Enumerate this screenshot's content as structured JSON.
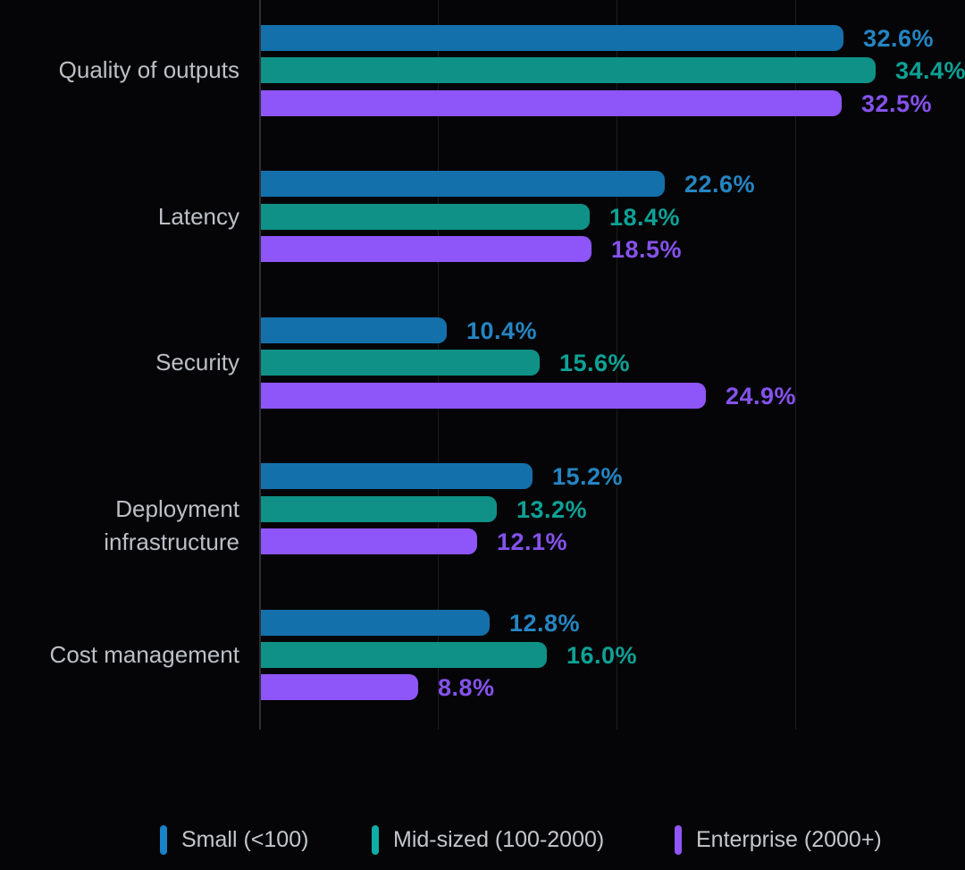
{
  "chart_data": {
    "type": "bar",
    "orientation": "horizontal",
    "title": "",
    "xlabel": "",
    "ylabel": "",
    "categories": [
      "Quality of outputs",
      "Latency",
      "Security",
      "Deployment infrastructure",
      "Cost management"
    ],
    "series": [
      {
        "name": "Small (<100)",
        "bar_color": "#1470ab",
        "label_color": "#2585c2",
        "marker_color": "#1a82c8",
        "values": [
          32.6,
          22.6,
          10.4,
          15.2,
          12.8
        ]
      },
      {
        "name": "Mid-sized (100-2000)",
        "bar_color": "#109187",
        "label_color": "#0ea196",
        "marker_color": "#10ada4",
        "values": [
          34.4,
          18.4,
          15.6,
          13.2,
          16.0
        ]
      },
      {
        "name": "Enterprise (2000+)",
        "bar_color": "#8e55f9",
        "label_color": "#8552ec",
        "marker_color": "#9156fa",
        "values": [
          32.5,
          18.5,
          24.9,
          12.1,
          8.8
        ]
      }
    ],
    "value_suffix": "%",
    "value_decimals": 1,
    "xlim": [
      0,
      40
    ],
    "gridline_interval": 10,
    "grid": true,
    "legend_position": "bottom",
    "background_color": "#050507",
    "axis_color": "#2e2e33",
    "gridline_color": "#1c1c20",
    "category_label_color": "#bcc0c6",
    "legend_label_color": "#c3c7cc"
  },
  "legend_layout": {
    "item_lefts": [
      179,
      416,
      755
    ]
  }
}
